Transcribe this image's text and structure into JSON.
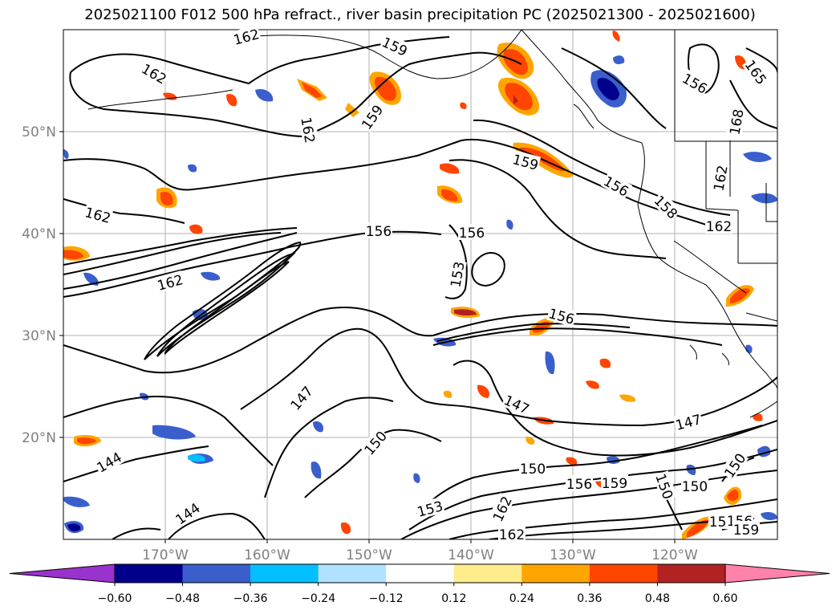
{
  "title": "2025021100 F012 500 hPa refract., river basin precipitation PC (2025021300 - 2025021600)",
  "map": {
    "lon_ticks": [
      "170°W",
      "160°W",
      "150°W",
      "140°W",
      "130°W",
      "120°W"
    ],
    "lat_ticks": [
      "50°N",
      "40°N",
      "30°N",
      "20°N"
    ],
    "contour_labels": [
      "162",
      "159",
      "162",
      "159",
      "162",
      "165",
      "168",
      "159",
      "156",
      "158",
      "162",
      "162",
      "162",
      "156",
      "156",
      "156",
      "153",
      "162",
      "156",
      "147",
      "147",
      "150",
      "150",
      "147",
      "150",
      "144",
      "153",
      "156",
      "159",
      "144",
      "162",
      "162",
      "150",
      "153",
      "156",
      "159",
      "150"
    ]
  },
  "colorbar": {
    "ticks": [
      "−0.60",
      "−0.48",
      "−0.36",
      "−0.24",
      "−0.12",
      "0.12",
      "0.24",
      "0.36",
      "0.48",
      "0.60"
    ],
    "colors": [
      "#9a32cd",
      "#00008b",
      "#3a5fcd",
      "#00bfff",
      "#b0e2ff",
      "#ffffff",
      "#ffec8b",
      "#ffa500",
      "#ff4500",
      "#b22222",
      "#ff82ab"
    ]
  }
}
